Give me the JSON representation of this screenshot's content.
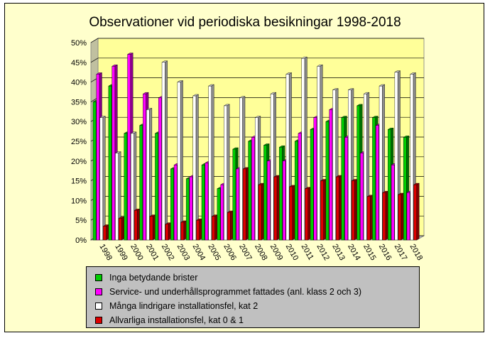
{
  "chart_data": {
    "type": "bar",
    "title": "Observationer vid periodiska besikningar 1998-2018",
    "categories": [
      "1998",
      "1999",
      "2000",
      "2001",
      "2002",
      "2003",
      "2004",
      "2005",
      "2006",
      "2007",
      "2008",
      "2009",
      "2010",
      "2011",
      "2012",
      "2013",
      "2014",
      "2015",
      "2016",
      "2017",
      "2018"
    ],
    "y_ticks": [
      "0%",
      "5%",
      "10%",
      "15%",
      "20%",
      "25%",
      "30%",
      "35%",
      "40%",
      "45%",
      "50%"
    ],
    "ylim": [
      0,
      50
    ],
    "grid": true,
    "legend_position": "bottom",
    "series": [
      {
        "name": "Inga betydande brister",
        "color": "#00cc00",
        "values": [
          35,
          39,
          27,
          29,
          27,
          18,
          15.5,
          19,
          13,
          23,
          25,
          24,
          23.5,
          25,
          28,
          30,
          31,
          34,
          31,
          28,
          26
        ]
      },
      {
        "name": "Service- und underhållsprogrammet fattades (anl. klass 2 och 3)",
        "color": "#ff00ff",
        "values": [
          42,
          44,
          47,
          37,
          36,
          19,
          16,
          19.5,
          14,
          18,
          26,
          20,
          20,
          27,
          31,
          33,
          26,
          22,
          29,
          19,
          12
        ]
      },
      {
        "name": "Många lindrigare installationsfel, kat 2",
        "color": "#ffffff",
        "values": [
          31,
          22,
          27,
          33,
          45,
          40,
          36.5,
          39,
          34,
          36,
          31,
          37,
          42,
          46,
          44,
          38,
          38,
          37,
          39,
          42.5,
          42
        ]
      },
      {
        "name": "Allvarliga installationsfel, kat 0 & 1",
        "color": "#dd0000",
        "values": [
          3.5,
          5.5,
          7.5,
          6,
          4,
          4.5,
          5,
          6,
          7,
          18,
          14,
          16,
          13.5,
          13,
          15,
          16,
          15,
          11,
          12,
          11.5,
          14
        ]
      }
    ]
  }
}
